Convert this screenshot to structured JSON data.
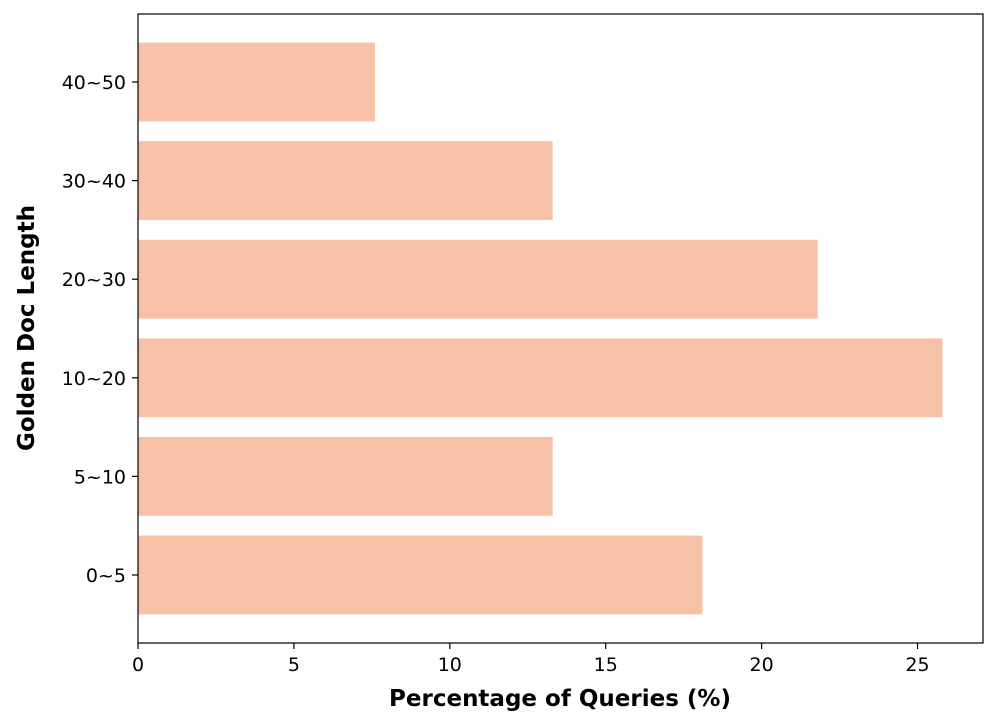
{
  "chart_data": {
    "type": "bar",
    "orientation": "horizontal",
    "x_label": "Percentage of Queries (%)",
    "y_label": "Golden Doc Length",
    "categories": [
      "0~5",
      "5~10",
      "10~20",
      "20~30",
      "30~40",
      "40~50"
    ],
    "values": [
      18.1,
      13.3,
      25.8,
      21.8,
      13.3,
      7.6
    ],
    "color": "#f7c1a8",
    "xlim": [
      0,
      27.1
    ],
    "xticks": [
      0,
      5,
      10,
      15,
      20,
      25
    ],
    "grid": false
  }
}
